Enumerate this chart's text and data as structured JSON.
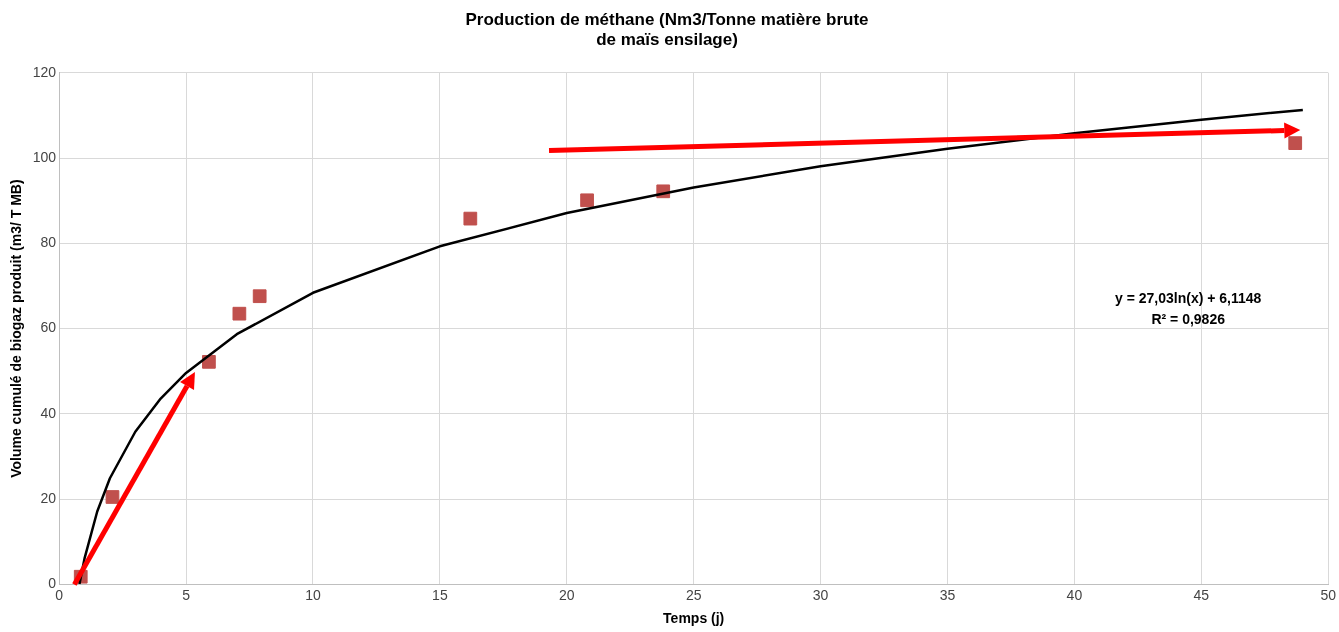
{
  "chart_data": {
    "type": "scatter",
    "title": [
      "Production de méthane (Nm3/Tonne matière brute",
      "de maïs ensilage)"
    ],
    "xlabel": "Temps (j)",
    "ylabel": "Volume cumulé de biogaz produit (m3/ T MB)",
    "xlim": [
      0,
      50
    ],
    "xticks": [
      0,
      5,
      10,
      15,
      20,
      25,
      30,
      35,
      40,
      45,
      50
    ],
    "ylim": [
      0,
      120
    ],
    "yticks": [
      0,
      20,
      40,
      60,
      80,
      100,
      120
    ],
    "grid": true,
    "legend": false,
    "marker": "square",
    "series": [
      {
        "color": "#c0504d",
        "x": [
          0.85,
          2.1,
          5.9,
          7.1,
          7.9,
          16.2,
          20.8,
          23.8,
          48.7
        ],
        "values": [
          1.8,
          20.5,
          52.2,
          63.5,
          67.6,
          85.8,
          90.1,
          92.2,
          103.5
        ]
      },
      {
        "type": "line",
        "color": "#000000",
        "marker": "none",
        "line_style": "solid",
        "x": [
          0.8,
          1,
          1.5,
          2,
          3,
          4,
          5,
          7,
          10,
          15,
          20,
          25,
          30,
          35,
          40,
          45,
          49
        ],
        "values": [
          0.1,
          6.1,
          17.1,
          24.9,
          35.8,
          43.6,
          49.6,
          58.7,
          68.4,
          79.3,
          87.1,
          93.1,
          98.1,
          102.2,
          105.8,
          109,
          111.3
        ]
      }
    ],
    "annotations": [
      "y = 27,03ln(x) + 6,1148",
      "R² = 0,9826"
    ]
  }
}
